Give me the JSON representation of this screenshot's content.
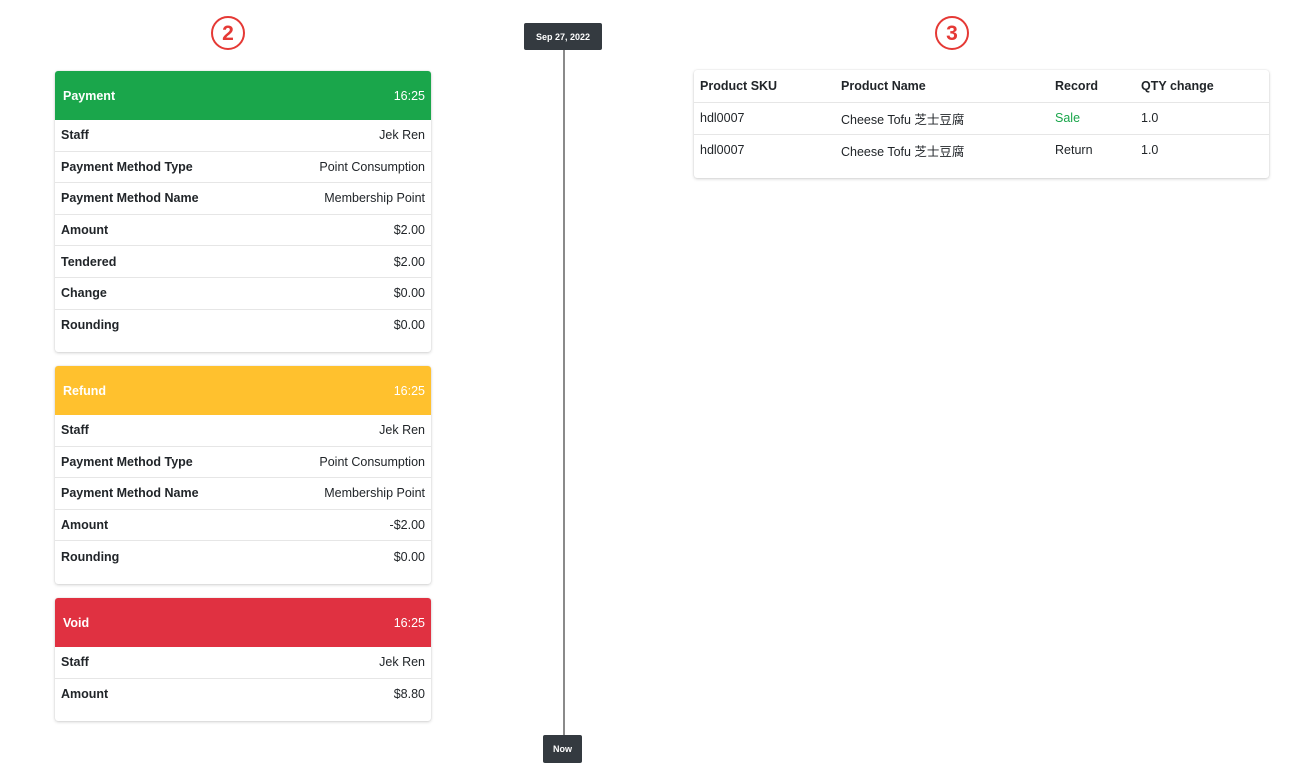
{
  "markers": {
    "left": "2",
    "right": "3"
  },
  "timeline": {
    "start_label": "Sep 27, 2022",
    "end_label": "Now"
  },
  "cards": {
    "payment": {
      "title": "Payment",
      "time": "16:25",
      "color": "#1aa64b",
      "rows": [
        {
          "key": "Staff",
          "value": "Jek Ren"
        },
        {
          "key": "Payment Method Type",
          "value": "Point Consumption"
        },
        {
          "key": "Payment Method Name",
          "value": "Membership Point"
        },
        {
          "key": "Amount",
          "value": "$2.00"
        },
        {
          "key": "Tendered",
          "value": "$2.00"
        },
        {
          "key": "Change",
          "value": "$0.00"
        },
        {
          "key": "Rounding",
          "value": "$0.00"
        }
      ]
    },
    "refund": {
      "title": "Refund",
      "time": "16:25",
      "color": "#ffc12e",
      "rows": [
        {
          "key": "Staff",
          "value": "Jek Ren"
        },
        {
          "key": "Payment Method Type",
          "value": "Point Consumption"
        },
        {
          "key": "Payment Method Name",
          "value": "Membership Point"
        },
        {
          "key": "Amount",
          "value": "-$2.00"
        },
        {
          "key": "Rounding",
          "value": "$0.00"
        }
      ]
    },
    "void": {
      "title": "Void",
      "time": "16:25",
      "color": "#e03141",
      "rows": [
        {
          "key": "Staff",
          "value": "Jek Ren"
        },
        {
          "key": "Amount",
          "value": "$8.80"
        }
      ]
    }
  },
  "product_table": {
    "headers": [
      "Product SKU",
      "Product Name",
      "Record",
      "QTY change"
    ],
    "rows": [
      [
        "hdl0007",
        "Cheese Tofu 芝士豆腐",
        "Sale",
        "1.0"
      ],
      [
        "hdl0007",
        "Cheese Tofu 芝士豆腐",
        "Return",
        "1.0"
      ]
    ],
    "sale_color": "#1aa64b"
  }
}
